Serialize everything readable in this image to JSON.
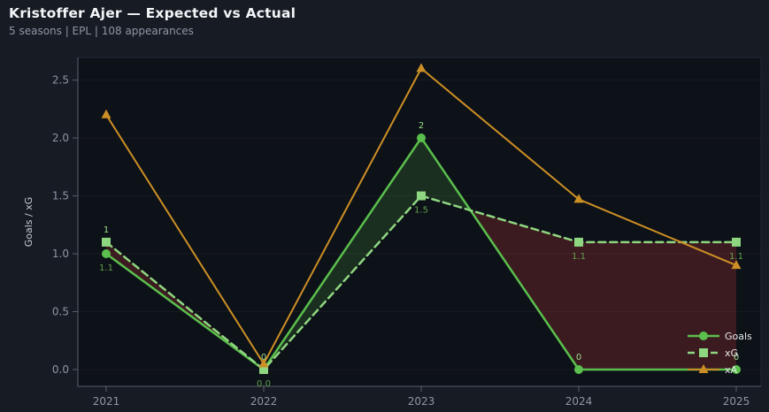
{
  "header": {
    "title": "Kristoffer Ajer — Expected vs Actual",
    "subtitle": "5 seasons | EPL | 108 appearances"
  },
  "chart_data": {
    "type": "line",
    "x": [
      "2021",
      "2022",
      "2023",
      "2024",
      "2025"
    ],
    "series": [
      {
        "name": "Goals",
        "values": [
          1,
          0,
          2,
          0,
          0
        ],
        "point_labels": [
          "1",
          "0",
          "2",
          "0",
          "0"
        ],
        "label_position": "above",
        "color": "#5abf4c",
        "label_color": "#9ade8c",
        "marker": "circle",
        "dash": "solid",
        "width": 2.5
      },
      {
        "name": "xG",
        "values": [
          1.1,
          0.0,
          1.5,
          1.1,
          1.1
        ],
        "point_labels": [
          "1.1",
          "0.0",
          "1.5",
          "1.1",
          "1.1"
        ],
        "label_position": "below",
        "color": "#8fd680",
        "label_color": "#61a24c",
        "marker": "square",
        "dash": "dashed",
        "width": 2.5
      },
      {
        "name": "xA",
        "values": [
          2.2,
          0.05,
          2.6,
          1.47,
          0.9
        ],
        "point_labels": [],
        "label_position": "none",
        "color": "#cc8f25",
        "label_color": "#cc8f25",
        "marker": "triangle",
        "dash": "solid",
        "width": 2
      }
    ],
    "fill_between": {
      "series_a": "Goals",
      "series_b": "xG",
      "positive_color": "rgba(92,191,79,0.18)",
      "negative_color": "rgba(190,55,55,0.27)"
    },
    "ylabel": "Goals / xG",
    "yticks": [
      0.0,
      0.5,
      1.0,
      1.5,
      2.0,
      2.5
    ],
    "ytick_labels": [
      "0.0",
      "0.5",
      "1.0",
      "1.5",
      "2.0",
      "2.5"
    ],
    "ylim": [
      -0.145,
      2.695
    ],
    "grid": "horizontal-faint",
    "legend": {
      "position": "lower right",
      "entries": [
        "Goals",
        "xG",
        "xA"
      ]
    }
  },
  "colors": {
    "page_bg": "#161b24",
    "plot_bg": "#0d1118",
    "grid_line": "rgba(255,255,255,0.045)",
    "spine": "#59606b",
    "frame": "#222835",
    "tick_label": "#8f97a3",
    "ylabel": "#c5cad2",
    "legend_text": "#e8eaed"
  }
}
